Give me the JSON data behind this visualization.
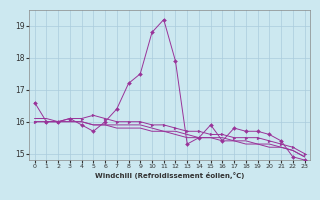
{
  "title": "",
  "xlabel": "Windchill (Refroidissement éolien,°C)",
  "bg_color": "#cce8f0",
  "grid_color": "#aaccdd",
  "line_color": "#993399",
  "xlim": [
    -0.5,
    23.5
  ],
  "ylim": [
    14.8,
    19.5
  ],
  "yticks": [
    15,
    16,
    17,
    18,
    19
  ],
  "xticks": [
    0,
    1,
    2,
    3,
    4,
    5,
    6,
    7,
    8,
    9,
    10,
    11,
    12,
    13,
    14,
    15,
    16,
    17,
    18,
    19,
    20,
    21,
    22,
    23
  ],
  "series": [
    [
      16.6,
      16.0,
      16.0,
      16.1,
      15.9,
      15.7,
      16.0,
      16.4,
      17.2,
      17.5,
      18.8,
      19.2,
      17.9,
      15.3,
      15.5,
      15.9,
      15.4,
      15.8,
      15.7,
      15.7,
      15.6,
      15.4,
      14.9,
      14.8
    ],
    [
      16.0,
      16.0,
      16.0,
      16.0,
      16.0,
      15.9,
      15.9,
      15.9,
      15.9,
      15.9,
      15.8,
      15.7,
      15.7,
      15.6,
      15.5,
      15.5,
      15.5,
      15.4,
      15.4,
      15.3,
      15.3,
      15.2,
      15.1,
      14.9
    ],
    [
      16.1,
      16.1,
      16.0,
      16.0,
      16.0,
      15.9,
      15.9,
      15.8,
      15.8,
      15.8,
      15.7,
      15.7,
      15.6,
      15.5,
      15.5,
      15.5,
      15.4,
      15.4,
      15.3,
      15.3,
      15.2,
      15.2,
      15.1,
      14.9
    ],
    [
      16.0,
      16.0,
      16.0,
      16.1,
      16.1,
      16.2,
      16.1,
      16.0,
      16.0,
      16.0,
      15.9,
      15.9,
      15.8,
      15.7,
      15.7,
      15.6,
      15.6,
      15.5,
      15.5,
      15.5,
      15.4,
      15.3,
      15.2,
      15.0
    ]
  ],
  "markers": [
    "D",
    null,
    null,
    ">"
  ],
  "markersizes": [
    2.0,
    1.5,
    1.5,
    2.0
  ]
}
